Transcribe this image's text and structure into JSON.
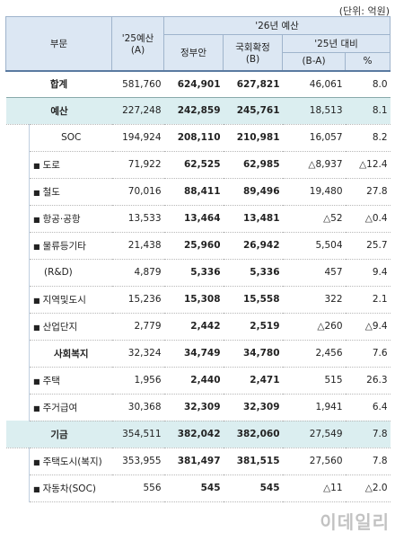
{
  "unit_note": "(단위: 억원)",
  "header": {
    "col_division": "부문",
    "col_25_budget": "'25예산",
    "col_25_budget_sub": "(A)",
    "col_26_budget": "'26년 예산",
    "col_gov": "정부안",
    "col_final": "국회확정",
    "col_final_sub": "(B)",
    "col_vs25": "'25년 대비",
    "col_diff": "(B-A)",
    "col_pct": "%"
  },
  "rows": [
    {
      "label": "합계",
      "a": "581,760",
      "gov": "624,901",
      "b": "627,821",
      "diff": "46,061",
      "pct": "8.0"
    },
    {
      "label": "예산",
      "a": "227,248",
      "gov": "242,859",
      "b": "245,761",
      "diff": "18,513",
      "pct": "8.1"
    },
    {
      "label": "SOC",
      "a": "194,924",
      "gov": "208,110",
      "b": "210,981",
      "diff": "16,057",
      "pct": "8.2"
    },
    {
      "label": "도로",
      "a": "71,922",
      "gov": "62,525",
      "b": "62,985",
      "diff": "△8,937",
      "pct": "△12.4"
    },
    {
      "label": "철도",
      "a": "70,016",
      "gov": "88,411",
      "b": "89,496",
      "diff": "19,480",
      "pct": "27.8"
    },
    {
      "label": "항공·공항",
      "a": "13,533",
      "gov": "13,464",
      "b": "13,481",
      "diff": "△52",
      "pct": "△0.4"
    },
    {
      "label": "물류등기타",
      "a": "21,438",
      "gov": "25,960",
      "b": "26,942",
      "diff": "5,504",
      "pct": "25.7"
    },
    {
      "label": "(R&D)",
      "a": "4,879",
      "gov": "5,336",
      "b": "5,336",
      "diff": "457",
      "pct": "9.4"
    },
    {
      "label": "지역및도시",
      "a": "15,236",
      "gov": "15,308",
      "b": "15,558",
      "diff": "322",
      "pct": "2.1"
    },
    {
      "label": "산업단지",
      "a": "2,779",
      "gov": "2,442",
      "b": "2,519",
      "diff": "△260",
      "pct": "△9.4"
    },
    {
      "label": "사회복지",
      "a": "32,324",
      "gov": "34,749",
      "b": "34,780",
      "diff": "2,456",
      "pct": "7.6"
    },
    {
      "label": "주택",
      "a": "1,956",
      "gov": "2,440",
      "b": "2,471",
      "diff": "515",
      "pct": "26.3"
    },
    {
      "label": "주거급여",
      "a": "30,368",
      "gov": "32,309",
      "b": "32,309",
      "diff": "1,941",
      "pct": "6.4"
    },
    {
      "label": "기금",
      "a": "354,511",
      "gov": "382,042",
      "b": "382,060",
      "diff": "27,549",
      "pct": "7.8"
    },
    {
      "label": "주택도시(복지)",
      "a": "353,955",
      "gov": "381,497",
      "b": "381,515",
      "diff": "27,560",
      "pct": "7.8"
    },
    {
      "label": "자동차(SOC)",
      "a": "556",
      "gov": "545",
      "b": "545",
      "diff": "△11",
      "pct": "△2.0"
    }
  ],
  "watermark": "이데일리"
}
